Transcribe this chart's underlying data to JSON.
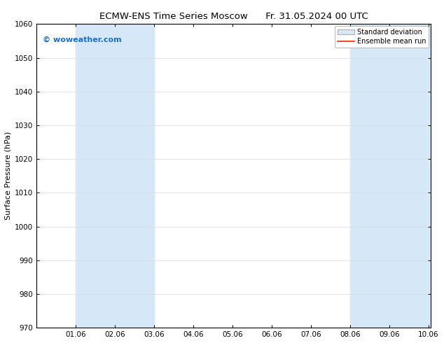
{
  "title_left": "ECMW-ENS Time Series Moscow",
  "title_right": "Fr. 31.05.2024 00 UTC",
  "ylabel": "Surface Pressure (hPa)",
  "ylim": [
    970,
    1060
  ],
  "yticks": [
    970,
    980,
    990,
    1000,
    1010,
    1020,
    1030,
    1040,
    1050,
    1060
  ],
  "xlim": [
    0.0,
    10.06
  ],
  "xtick_labels": [
    "01.06",
    "02.06",
    "03.06",
    "04.06",
    "05.06",
    "06.06",
    "07.06",
    "08.06",
    "09.06",
    "10.06"
  ],
  "xtick_positions": [
    1.0,
    2.0,
    3.0,
    4.0,
    5.0,
    6.0,
    7.0,
    8.0,
    9.0,
    10.0
  ],
  "shaded_regions": [
    {
      "x_start": 1.0,
      "x_end": 3.0,
      "color": "#d6e8f7"
    },
    {
      "x_start": 8.0,
      "x_end": 10.06,
      "color": "#d6e8f7"
    }
  ],
  "watermark_text": "© woweather.com",
  "watermark_color": "#1a6fc4",
  "legend_labels": [
    "Standard deviation",
    "Ensemble mean run"
  ],
  "legend_patch_color": "#d6e8f7",
  "legend_patch_edge": "#aaaaaa",
  "legend_line_color": "#ff2200",
  "background_color": "#ffffff",
  "spine_color": "#000000",
  "tick_color": "#000000",
  "title_fontsize": 9.5,
  "ylabel_fontsize": 8,
  "tick_fontsize": 7.5,
  "watermark_fontsize": 8,
  "legend_fontsize": 7
}
